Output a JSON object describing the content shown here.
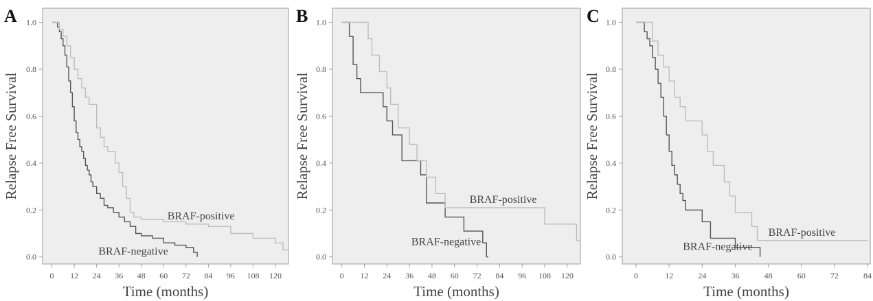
{
  "colors": {
    "plot_bg": "#eeeeee",
    "axis": "#9a9a9a",
    "negative": "#555555",
    "positive": "#bdbdbd",
    "text": "#444444"
  },
  "chart_data": [
    {
      "panel_label": "A",
      "type": "line",
      "step": true,
      "xlabel": "Time (months)",
      "ylabel": "Relapse Free Survival",
      "xlim": [
        -5,
        127
      ],
      "ylim": [
        -0.03,
        1.06
      ],
      "xticks": [
        0,
        12,
        24,
        36,
        48,
        60,
        72,
        84,
        96,
        108,
        120
      ],
      "yticks": [
        "0.0",
        "0.2",
        "0.4",
        "0.6",
        "0.8",
        "1.0"
      ],
      "series": [
        {
          "name": "BRAF-negative",
          "color": "#555555",
          "x": [
            0,
            3,
            4,
            5,
            6,
            7,
            8,
            9,
            10,
            11,
            12,
            13,
            14,
            15,
            16,
            17,
            18,
            19,
            20,
            21,
            22,
            24,
            26,
            28,
            30,
            33,
            36,
            39,
            42,
            45,
            48,
            54,
            60,
            66,
            72,
            76,
            78
          ],
          "y": [
            1.0,
            0.98,
            0.96,
            0.93,
            0.9,
            0.86,
            0.81,
            0.75,
            0.7,
            0.64,
            0.58,
            0.53,
            0.5,
            0.47,
            0.45,
            0.42,
            0.39,
            0.37,
            0.35,
            0.32,
            0.3,
            0.27,
            0.25,
            0.22,
            0.21,
            0.19,
            0.17,
            0.15,
            0.13,
            0.1,
            0.09,
            0.08,
            0.06,
            0.05,
            0.04,
            0.02,
            0.0
          ]
        },
        {
          "name": "BRAF-positive",
          "color": "#bdbdbd",
          "x": [
            0,
            4,
            6,
            8,
            10,
            12,
            14,
            16,
            18,
            20,
            24,
            26,
            28,
            30,
            34,
            36,
            38,
            40,
            42,
            44,
            48,
            60,
            72,
            84,
            96,
            108,
            120,
            124,
            127
          ],
          "y": [
            1.0,
            0.97,
            0.94,
            0.9,
            0.85,
            0.8,
            0.76,
            0.72,
            0.68,
            0.65,
            0.55,
            0.51,
            0.47,
            0.45,
            0.4,
            0.36,
            0.3,
            0.25,
            0.19,
            0.17,
            0.16,
            0.15,
            0.14,
            0.13,
            0.1,
            0.08,
            0.06,
            0.03,
            0.03
          ]
        }
      ],
      "labels": [
        {
          "text": "BRAF-positive",
          "x": 62,
          "y": 0.16
        },
        {
          "text": "BRAF-negative",
          "x": 25,
          "y": 0.01
        }
      ]
    },
    {
      "panel_label": "B",
      "type": "line",
      "step": true,
      "xlabel": "Time (months)",
      "ylabel": "Relapse Free Survival",
      "xlim": [
        -5,
        127
      ],
      "ylim": [
        -0.03,
        1.06
      ],
      "xticks": [
        0,
        12,
        24,
        36,
        48,
        60,
        72,
        84,
        96,
        108,
        120
      ],
      "yticks": [
        "0.0",
        "0.2",
        "0.4",
        "0.6",
        "0.8",
        "1.0"
      ],
      "series": [
        {
          "name": "BRAF-negative",
          "color": "#555555",
          "x": [
            0,
            4,
            6,
            8,
            10,
            22,
            24,
            27,
            32,
            36,
            42,
            45,
            55,
            65,
            75,
            77,
            78
          ],
          "y": [
            1.0,
            0.94,
            0.82,
            0.76,
            0.7,
            0.64,
            0.58,
            0.52,
            0.41,
            0.41,
            0.35,
            0.23,
            0.17,
            0.11,
            0.06,
            0.0,
            0.0
          ]
        },
        {
          "name": "BRAF-positive",
          "color": "#bdbdbd",
          "x": [
            0,
            12,
            14,
            16,
            20,
            24,
            26,
            30,
            36,
            40,
            45,
            50,
            55,
            60,
            72,
            84,
            96,
            108,
            120,
            125,
            127
          ],
          "y": [
            1.0,
            1.0,
            0.93,
            0.86,
            0.79,
            0.72,
            0.65,
            0.55,
            0.48,
            0.41,
            0.34,
            0.27,
            0.21,
            0.21,
            0.21,
            0.21,
            0.21,
            0.14,
            0.14,
            0.07,
            0.07
          ]
        }
      ],
      "labels": [
        {
          "text": "BRAF-positive",
          "x": 68,
          "y": 0.23
        },
        {
          "text": "BRAF-negative",
          "x": 37,
          "y": 0.05
        }
      ]
    },
    {
      "panel_label": "C",
      "type": "line",
      "step": true,
      "xlabel": "Time (months)",
      "ylabel": "Relapse Free Survival",
      "xlim": [
        -5,
        85
      ],
      "ylim": [
        -0.03,
        1.06
      ],
      "xticks": [
        0,
        12,
        24,
        36,
        48,
        60,
        72,
        84
      ],
      "yticks": [
        "0.0",
        "0.2",
        "0.4",
        "0.6",
        "0.8",
        "1.0"
      ],
      "series": [
        {
          "name": "BRAF-negative",
          "color": "#555555",
          "x": [
            0,
            3,
            4,
            5,
            6,
            7,
            8,
            9,
            10,
            11,
            12,
            13,
            14,
            15,
            16,
            17,
            18,
            20,
            24,
            27,
            30,
            36,
            44,
            45
          ],
          "y": [
            1.0,
            0.96,
            0.93,
            0.9,
            0.85,
            0.8,
            0.74,
            0.68,
            0.6,
            0.52,
            0.45,
            0.39,
            0.35,
            0.31,
            0.27,
            0.24,
            0.2,
            0.2,
            0.15,
            0.08,
            0.08,
            0.04,
            0.04,
            0.0
          ]
        },
        {
          "name": "BRAF-positive",
          "color": "#bdbdbd",
          "x": [
            0,
            6,
            8,
            10,
            12,
            14,
            16,
            18,
            24,
            26,
            28,
            30,
            32,
            34,
            36,
            38,
            42,
            44,
            46,
            84
          ],
          "y": [
            1.0,
            0.92,
            0.86,
            0.81,
            0.75,
            0.68,
            0.64,
            0.58,
            0.52,
            0.45,
            0.39,
            0.39,
            0.32,
            0.26,
            0.19,
            0.19,
            0.13,
            0.07,
            0.07,
            0.07
          ]
        }
      ],
      "labels": [
        {
          "text": "BRAF-positive",
          "x": 48,
          "y": 0.09
        },
        {
          "text": "BRAF-negative",
          "x": 17,
          "y": 0.03
        }
      ]
    }
  ]
}
